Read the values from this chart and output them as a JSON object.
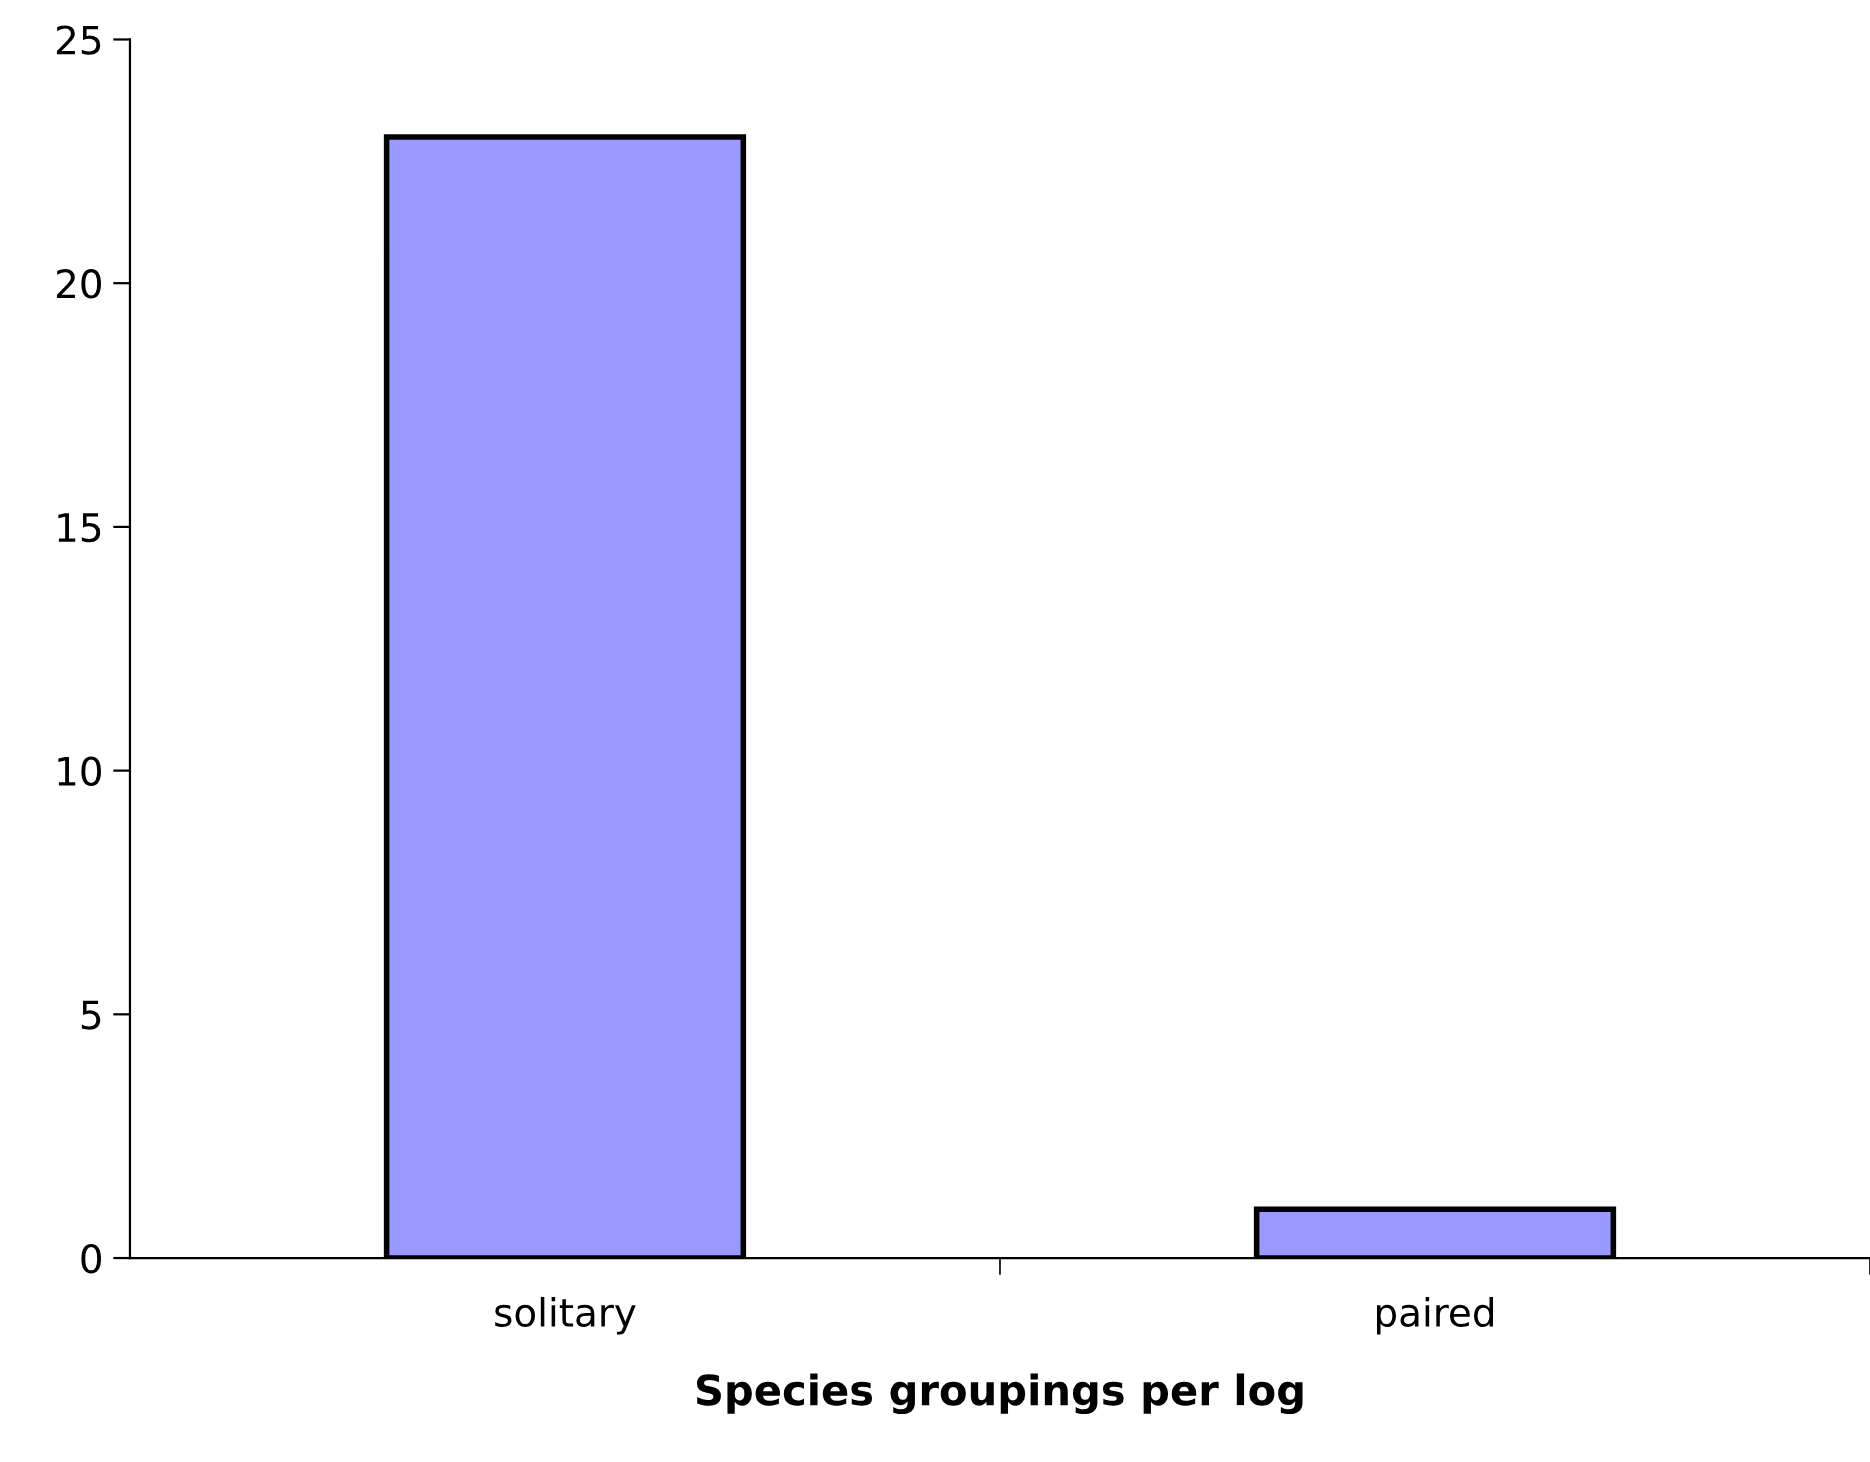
{
  "chart_data": {
    "type": "bar",
    "xlabel": "Species groupings per log",
    "categories": [
      "solitary",
      "paired"
    ],
    "values": [
      23,
      1
    ],
    "color": "#9999ff",
    "ylim": [
      0,
      25
    ],
    "yticks": [
      0,
      5,
      10,
      15,
      20,
      25
    ],
    "grid": false,
    "legend": false
  }
}
